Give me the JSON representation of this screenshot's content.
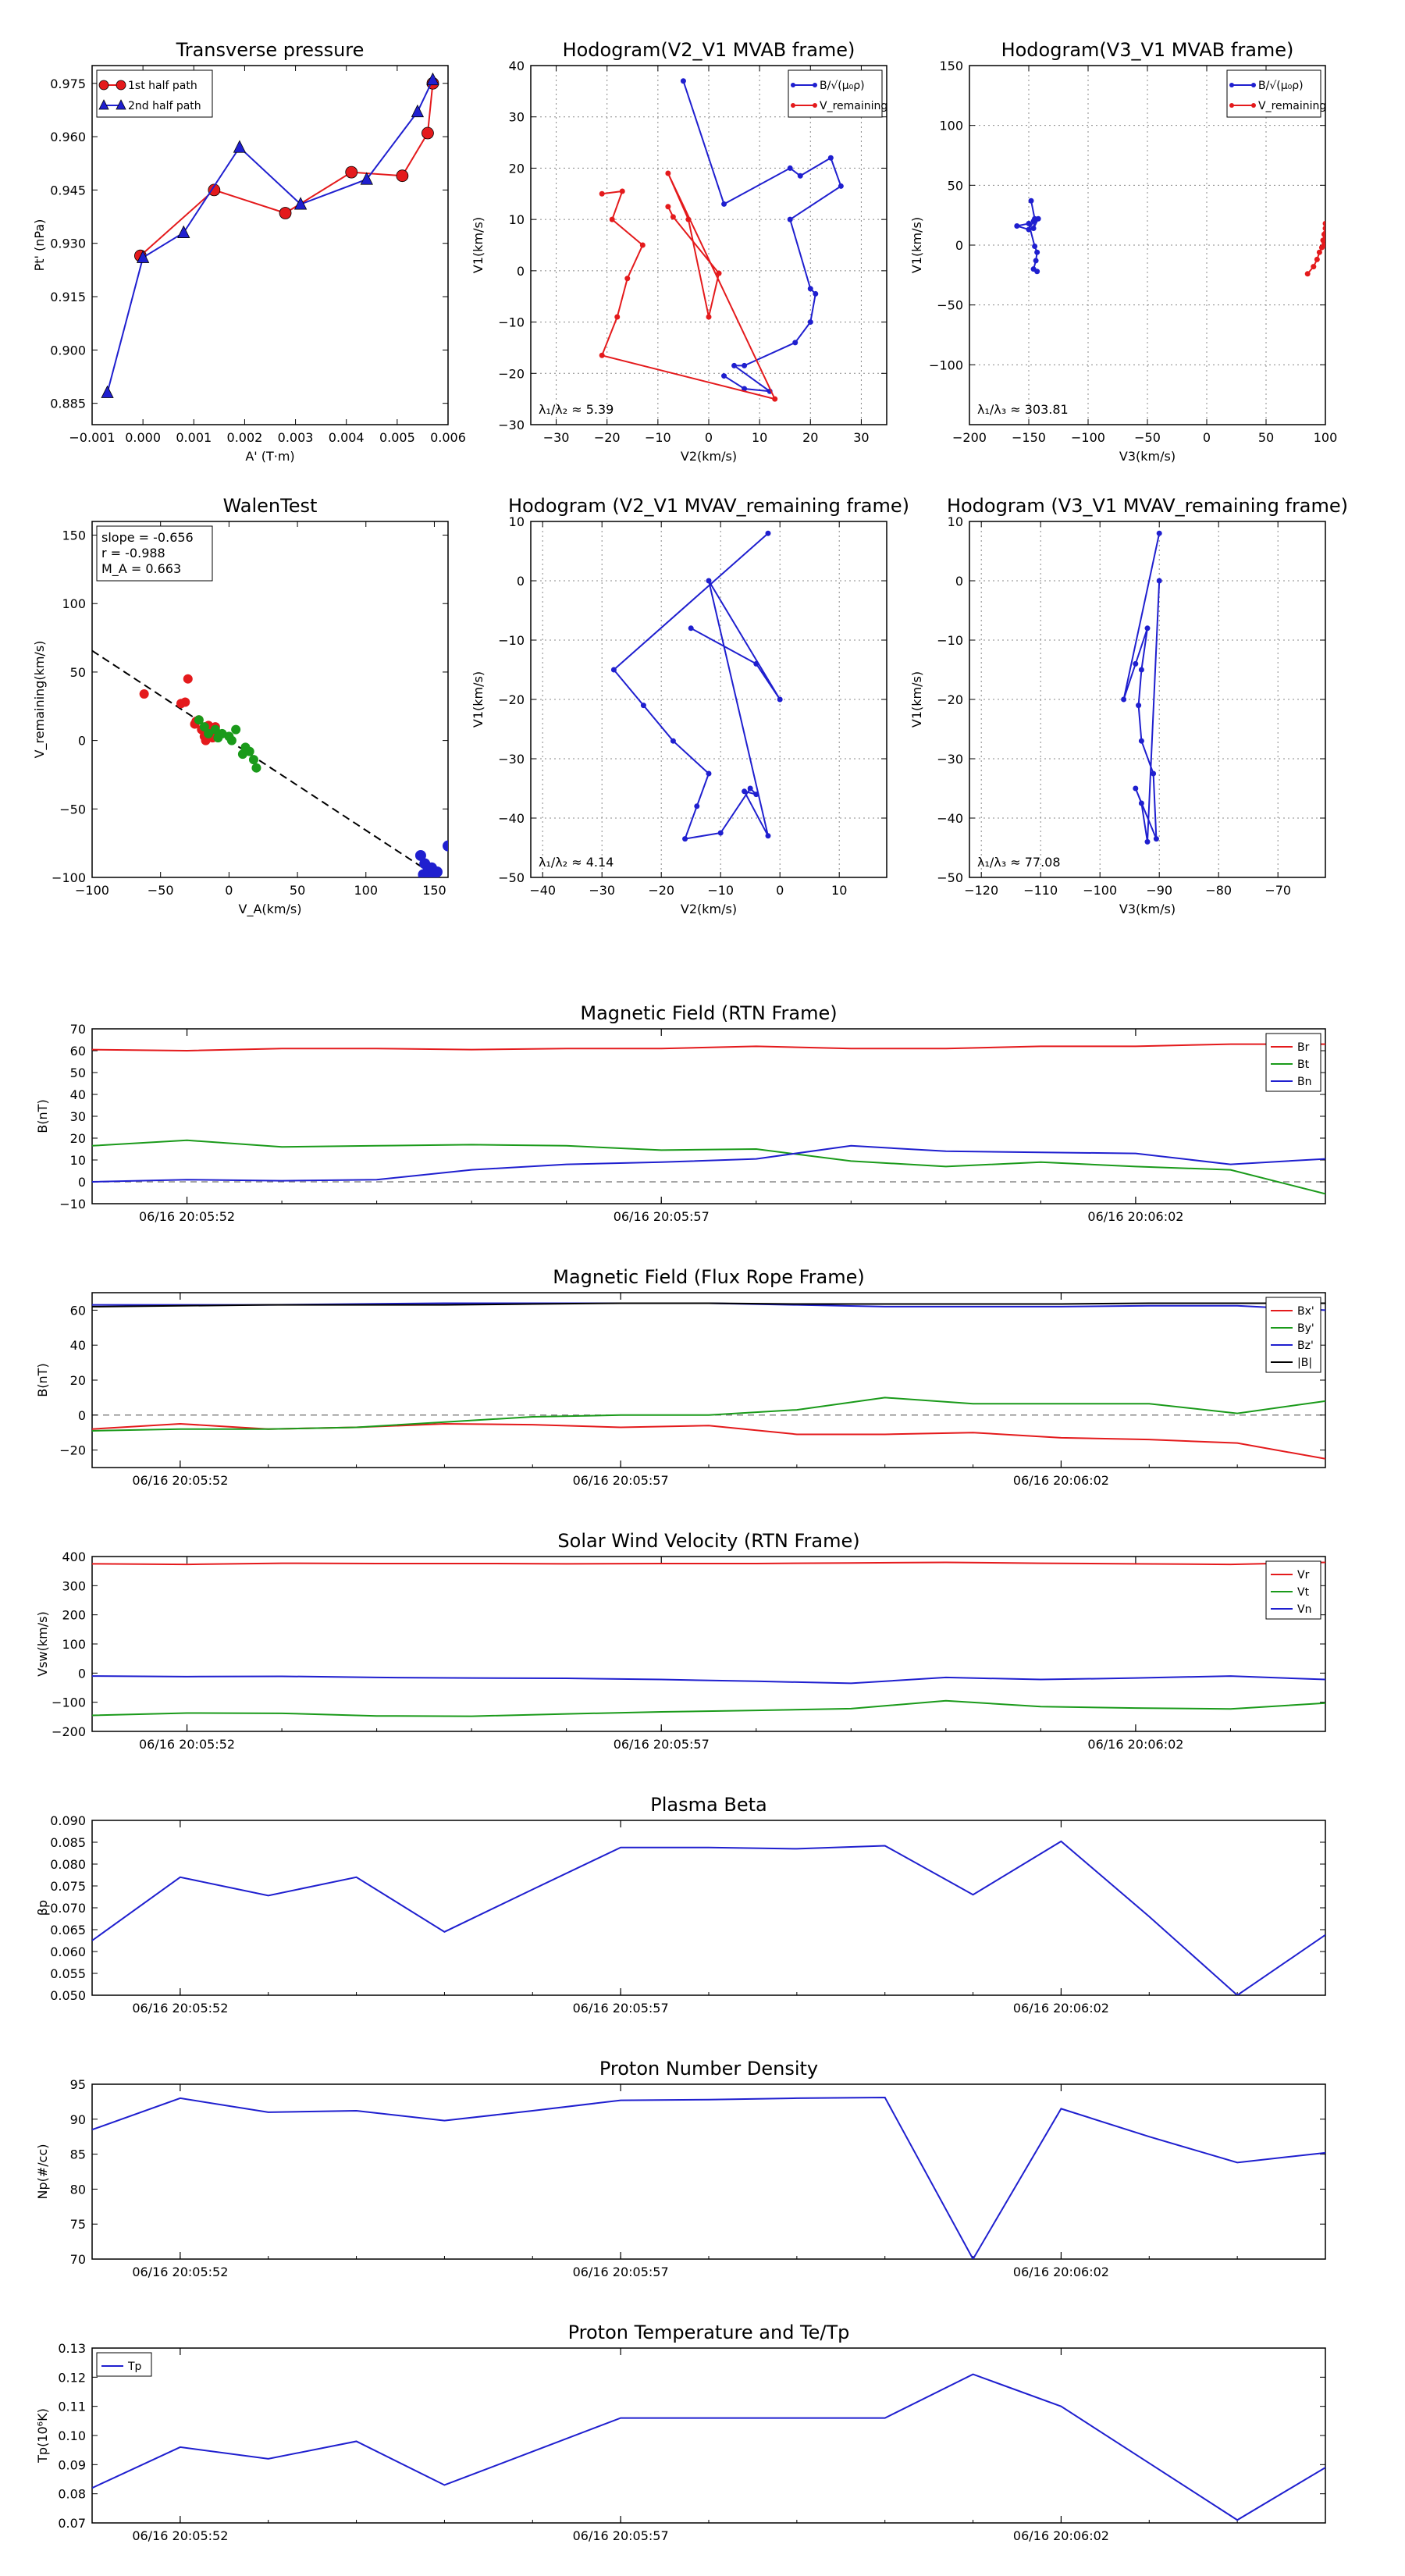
{
  "chart_data": [
    {
      "id": "transverse-pressure",
      "type": "line",
      "title": "Transverse pressure",
      "xlabel": "A' (T·m)",
      "ylabel": "Pt' (nPa)",
      "xlim": [
        -0.001,
        0.006
      ],
      "ylim": [
        0.879,
        0.98
      ],
      "xticks": [
        -0.001,
        0.0,
        0.001,
        0.002,
        0.003,
        0.004,
        0.005,
        0.006
      ],
      "xticklabels": [
        "−0.001",
        "0.000",
        "0.001",
        "0.002",
        "0.003",
        "0.004",
        "0.005",
        "0.006"
      ],
      "yticks": [
        0.885,
        0.9,
        0.915,
        0.93,
        0.945,
        0.96,
        0.975
      ],
      "yticklabels": [
        "0.885",
        "0.900",
        "0.915",
        "0.930",
        "0.945",
        "0.960",
        "0.975"
      ],
      "grid": false,
      "legend_position": "top-left",
      "series": [
        {
          "name": "1st half path",
          "color": "#e41a1c",
          "marker": "circle",
          "x": [
            -5e-05,
            0.0014,
            0.0028,
            0.0041,
            0.0051,
            0.0056,
            0.0057
          ],
          "y": [
            0.9265,
            0.945,
            0.9385,
            0.95,
            0.949,
            0.961,
            0.975
          ]
        },
        {
          "name": "2nd half path",
          "color": "#1f1fcf",
          "marker": "triangle",
          "x": [
            -0.0007,
            0.0,
            0.0008,
            0.0019,
            0.0031,
            0.0044,
            0.0054,
            0.0057
          ],
          "y": [
            0.888,
            0.926,
            0.933,
            0.957,
            0.941,
            0.948,
            0.967,
            0.976
          ]
        }
      ]
    },
    {
      "id": "hodogram-v2-v1-mvab",
      "type": "line",
      "title": "Hodogram(V2_V1 MVAB frame)",
      "xlabel": "V2(km/s)",
      "ylabel": "V1(km/s)",
      "xlim": [
        -35,
        35
      ],
      "ylim": [
        -30,
        40
      ],
      "xticks": [
        -30,
        -20,
        -10,
        0,
        10,
        20,
        30
      ],
      "yticks": [
        -30,
        -20,
        -10,
        0,
        10,
        20,
        30,
        40
      ],
      "grid": true,
      "legend_position": "top-right",
      "annotation": "λ₁/λ₂ ≈ 5.39",
      "series": [
        {
          "name": "B/√(μ₀ρ)",
          "color": "#1f1fcf",
          "x": [
            -5,
            3,
            16,
            18,
            24,
            26,
            16,
            20,
            21,
            20,
            17,
            7,
            5,
            12,
            7,
            3
          ],
          "y": [
            37,
            13,
            20,
            18.5,
            22,
            16.5,
            10,
            -3.5,
            -4.5,
            -10,
            -14,
            -18.5,
            -18.5,
            -23.5,
            -23,
            -20.5
          ]
        },
        {
          "name": "V_remaining",
          "color": "#e41a1c",
          "x": [
            -21,
            -17,
            -19,
            -13,
            -16,
            -18,
            -21,
            13,
            -8,
            -4,
            0,
            2,
            -7,
            -8
          ],
          "y": [
            15,
            15.5,
            10,
            5,
            -1.5,
            -9,
            -16.5,
            -25,
            19,
            10,
            -9,
            -0.5,
            10.5,
            12.5
          ]
        }
      ]
    },
    {
      "id": "hodogram-v3-v1-mvab",
      "type": "line",
      "title": "Hodogram(V3_V1 MVAB frame)",
      "xlabel": "V3(km/s)",
      "ylabel": "V1(km/s)",
      "xlim": [
        -200,
        100
      ],
      "ylim": [
        -150,
        150
      ],
      "xticks": [
        -200,
        -150,
        -100,
        -50,
        0,
        50,
        100
      ],
      "yticks": [
        -100,
        -50,
        0,
        50,
        100,
        150
      ],
      "grid": true,
      "legend_position": "top-right",
      "annotation": "λ₁/λ₃ ≈ 303.81",
      "series": [
        {
          "name": "B/√(μ₀ρ)",
          "color": "#1f1fcf",
          "x": [
            -148,
            -145,
            -146,
            -142,
            -146,
            -150,
            -160,
            -150,
            -145,
            -143,
            -144,
            -146,
            -143
          ],
          "y": [
            37,
            22,
            14,
            22,
            20,
            13,
            16,
            18,
            -1,
            -6,
            -13,
            -20,
            -22
          ]
        },
        {
          "name": "V_remaining",
          "color": "#e41a1c",
          "x": [
            85,
            90,
            93,
            95,
            97,
            98,
            99,
            100,
            100,
            100,
            99
          ],
          "y": [
            -24,
            -18,
            -12,
            -6,
            -2,
            4,
            9,
            14,
            18,
            10,
            0
          ]
        }
      ]
    },
    {
      "id": "walen-test",
      "type": "scatter",
      "title": "WalenTest",
      "xlabel": "V_A(km/s)",
      "ylabel": "V_remaining(km/s)",
      "xlim": [
        -100,
        160
      ],
      "ylim": [
        -100,
        160
      ],
      "xticks": [
        -100,
        -50,
        0,
        50,
        100,
        150
      ],
      "yticks": [
        -100,
        -50,
        0,
        50,
        100,
        150
      ],
      "grid": false,
      "annotations": [
        "slope = -0.656",
        "r = -0.988",
        "M_A = 0.663"
      ],
      "fit_line": {
        "slope": -0.656,
        "intercept": 0,
        "style": "dashed",
        "color": "#000000"
      },
      "series": [
        {
          "name": "red",
          "color": "#e41a1c",
          "x": [
            -62,
            -30,
            -35,
            -32,
            -25,
            -20,
            -18,
            -15,
            -10,
            -12,
            -17,
            -22,
            -14,
            -24
          ],
          "y": [
            34,
            45,
            27,
            28,
            12,
            8,
            3,
            11,
            10,
            2,
            0,
            15,
            7,
            14
          ]
        },
        {
          "name": "green",
          "color": "#1a9a1a",
          "x": [
            -22,
            -18,
            -10,
            -5,
            0,
            5,
            2,
            10,
            15,
            18,
            20,
            12,
            -15,
            -8
          ],
          "y": [
            15,
            10,
            8,
            5,
            3,
            8,
            0,
            -10,
            -8,
            -14,
            -20,
            -5,
            5,
            2
          ]
        },
        {
          "name": "blue",
          "color": "#1f1fcf",
          "x": [
            140,
            143,
            145,
            147,
            150,
            148,
            152,
            145,
            160,
            142
          ],
          "y": [
            -84,
            -90,
            -96,
            -100,
            -98,
            -93,
            -96,
            -100,
            -77,
            -98
          ]
        }
      ]
    },
    {
      "id": "hodogram-v2-v1-mvav",
      "type": "line",
      "title": "Hodogram (V2_V1 MVAV_remaining frame)",
      "xlabel": "V2(km/s)",
      "ylabel": "V1(km/s)",
      "xlim": [
        -42,
        18
      ],
      "ylim": [
        -50,
        10
      ],
      "xticks": [
        -40,
        -30,
        -20,
        -10,
        0,
        10
      ],
      "yticks": [
        -50,
        -40,
        -30,
        -20,
        -10,
        0,
        10
      ],
      "grid": true,
      "annotation": "λ₁/λ₂ ≈ 4.14",
      "series": [
        {
          "name": "V",
          "color": "#1f1fcf",
          "x": [
            -2,
            -28,
            -23,
            -18,
            -12,
            -14,
            -16,
            -10,
            -5,
            -4,
            -6,
            -2,
            -12,
            0,
            -4,
            -15
          ],
          "y": [
            8,
            -15,
            -21,
            -27,
            -32.5,
            -38,
            -43.5,
            -42.5,
            -35,
            -36,
            -35.5,
            -43,
            0,
            -20,
            -14,
            -8
          ]
        }
      ]
    },
    {
      "id": "hodogram-v3-v1-mvav",
      "type": "line",
      "title": "Hodogram (V3_V1 MVAV_remaining frame)",
      "xlabel": "V3(km/s)",
      "ylabel": "V1(km/s)",
      "xlim": [
        -122,
        -62
      ],
      "ylim": [
        -50,
        10
      ],
      "xticks": [
        -120,
        -110,
        -100,
        -90,
        -80,
        -70
      ],
      "yticks": [
        -50,
        -40,
        -30,
        -20,
        -10,
        0,
        10
      ],
      "grid": true,
      "annotation": "λ₁/λ₃ ≈ 77.08",
      "series": [
        {
          "name": "V",
          "color": "#1f1fcf",
          "x": [
            -90,
            -96,
            -94,
            -92,
            -93,
            -93.5,
            -93,
            -91,
            -90.5,
            -94,
            -93,
            -92,
            -90
          ],
          "y": [
            8,
            -20,
            -14,
            -8,
            -15,
            -21,
            -27,
            -32.5,
            -43.5,
            -35,
            -37.5,
            -44,
            0
          ]
        }
      ]
    },
    {
      "id": "magnetic-field-rtn",
      "type": "line",
      "title": "Magnetic Field (RTN Frame)",
      "ylabel": "B(nT)",
      "ylim": [
        -10,
        70
      ],
      "yticks": [
        -10,
        0,
        10,
        20,
        30,
        40,
        50,
        60,
        70
      ],
      "xtick_labels": [
        "06/16 20:05:52",
        "06/16 20:05:57",
        "06/16 20:06:02"
      ],
      "xtick_index": [
        1,
        6,
        11
      ],
      "zero_line": true,
      "legend_position": "top-right",
      "series": [
        {
          "name": "Br",
          "color": "#e41a1c",
          "values": [
            60.5,
            60,
            61,
            61,
            60.5,
            61,
            61,
            62,
            61,
            61,
            62,
            62,
            63,
            63
          ]
        },
        {
          "name": "Bt",
          "color": "#1a9a1a",
          "values": [
            16.5,
            19,
            16,
            16.5,
            17,
            16.5,
            14.5,
            15,
            9.5,
            7,
            9,
            7,
            5.5,
            -5.5
          ]
        },
        {
          "name": "Bn",
          "color": "#1f1fcf",
          "values": [
            0,
            1,
            0.5,
            1,
            5.5,
            8,
            9,
            10.5,
            16.5,
            14,
            13.5,
            13,
            8,
            10.5
          ]
        }
      ]
    },
    {
      "id": "magnetic-field-flux-rope",
      "type": "line",
      "title": "Magnetic Field (Flux Rope Frame)",
      "ylabel": "B(nT)",
      "ylim": [
        -30,
        70
      ],
      "yticks": [
        -20,
        0,
        20,
        40,
        60
      ],
      "xtick_labels": [
        "06/16 20:05:52",
        "06/16 20:05:57",
        "06/16 20:06:02"
      ],
      "xtick_index": [
        1,
        6,
        11
      ],
      "zero_line": true,
      "legend_position": "top-right",
      "series": [
        {
          "name": "Bx'",
          "color": "#e41a1c",
          "values": [
            -8,
            -5,
            -8,
            -7,
            -5,
            -5.5,
            -7,
            -6,
            -11,
            -11,
            -10,
            -13,
            -14,
            -16,
            -25
          ]
        },
        {
          "name": "By'",
          "color": "#1a9a1a",
          "values": [
            -9,
            -8,
            -8,
            -7,
            -4,
            -1,
            0,
            0,
            3,
            10,
            6.5,
            6.5,
            6.5,
            1,
            8
          ]
        },
        {
          "name": "Bz'",
          "color": "#1f1fcf",
          "values": [
            63,
            63,
            63,
            63.5,
            64,
            64,
            64,
            64,
            63,
            62,
            62,
            62,
            62.5,
            62.5,
            60
          ]
        },
        {
          "name": "|B|",
          "color": "#000000",
          "values": [
            62,
            62.5,
            63,
            63,
            63,
            63.5,
            64,
            64,
            63.5,
            63.5,
            63.5,
            63.5,
            64,
            64,
            64
          ]
        }
      ]
    },
    {
      "id": "solar-wind-velocity",
      "type": "line",
      "title": "Solar Wind Velocity (RTN Frame)",
      "ylabel": "Vsw(km/s)",
      "ylim": [
        -200,
        400
      ],
      "yticks": [
        -200,
        -100,
        0,
        100,
        200,
        300,
        400
      ],
      "xtick_labels": [
        "06/16 20:05:52",
        "06/16 20:05:57",
        "06/16 20:06:02"
      ],
      "xtick_index": [
        1,
        6,
        11
      ],
      "legend_position": "top-right",
      "series": [
        {
          "name": "Vr",
          "color": "#e41a1c",
          "values": [
            375,
            373,
            377,
            376,
            376,
            375,
            376,
            376,
            378,
            380,
            377,
            375,
            373,
            380
          ]
        },
        {
          "name": "Vt",
          "color": "#1a9a1a",
          "values": [
            -145,
            -137,
            -138,
            -147,
            -148,
            -140,
            -133,
            -128,
            -122,
            -95,
            -115,
            -120,
            -123,
            -103
          ]
        },
        {
          "name": "Vn",
          "color": "#1f1fcf",
          "values": [
            -10,
            -12,
            -11,
            -15,
            -17,
            -18,
            -22,
            -28,
            -35,
            -15,
            -22,
            -17,
            -10,
            -22
          ]
        }
      ]
    },
    {
      "id": "plasma-beta",
      "type": "line",
      "title": "Plasma Beta",
      "ylabel": "βp",
      "ylim": [
        0.05,
        0.09
      ],
      "yticks": [
        0.05,
        0.055,
        0.06,
        0.065,
        0.07,
        0.075,
        0.08,
        0.085,
        0.09
      ],
      "yticklabels": [
        "0.050",
        "0.055",
        "0.060",
        "0.065",
        "0.070",
        "0.075",
        "0.080",
        "0.085",
        "0.090"
      ],
      "xtick_labels": [
        "06/16 20:05:52",
        "06/16 20:05:57",
        "06/16 20:06:02"
      ],
      "xtick_index": [
        1,
        6,
        11
      ],
      "series": [
        {
          "name": "beta",
          "color": "#1f1fcf",
          "values": [
            0.0625,
            0.077,
            0.0728,
            0.077,
            0.0645,
            0.0742,
            0.0838,
            0.0838,
            0.0835,
            0.0842,
            0.073,
            0.0852,
            0.068,
            0.05,
            0.0638
          ]
        }
      ]
    },
    {
      "id": "proton-density",
      "type": "line",
      "title": "Proton Number Density",
      "ylabel": "Np(#/cc)",
      "ylim": [
        70,
        95
      ],
      "yticks": [
        70,
        75,
        80,
        85,
        90,
        95
      ],
      "xtick_labels": [
        "06/16 20:05:52",
        "06/16 20:05:57",
        "06/16 20:06:02"
      ],
      "xtick_index": [
        1,
        6,
        11
      ],
      "series": [
        {
          "name": "Np",
          "color": "#1f1fcf",
          "values": [
            88.5,
            93,
            91,
            91.2,
            89.8,
            91.2,
            92.7,
            92.8,
            93,
            93.1,
            70,
            91.5,
            87.5,
            83.8,
            85.2
          ]
        }
      ]
    },
    {
      "id": "proton-temperature",
      "type": "line",
      "title": "Proton Temperature and Te/Tp",
      "ylabel": "Tp(10⁶K)",
      "ylim": [
        0.07,
        0.13
      ],
      "yticks": [
        0.07,
        0.08,
        0.09,
        0.1,
        0.11,
        0.12,
        0.13
      ],
      "yticklabels": [
        "0.07",
        "0.08",
        "0.09",
        "0.10",
        "0.11",
        "0.12",
        "0.13"
      ],
      "xtick_labels": [
        "06/16 20:05:52",
        "06/16 20:05:57",
        "06/16 20:06:02"
      ],
      "xtick_index": [
        1,
        6,
        11
      ],
      "legend_position": "top-left",
      "series": [
        {
          "name": "Tp",
          "color": "#1f1fcf",
          "values": [
            0.082,
            0.096,
            0.092,
            0.098,
            0.083,
            0.0945,
            0.106,
            0.106,
            0.106,
            0.106,
            0.121,
            0.11,
            0.0905,
            0.071,
            0.089
          ]
        }
      ]
    }
  ]
}
